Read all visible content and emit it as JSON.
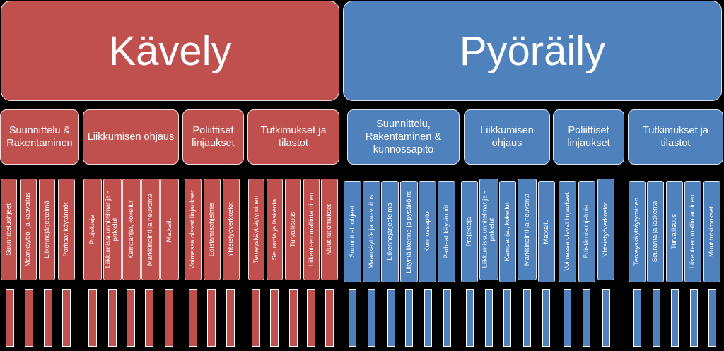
{
  "kavely": {
    "title": "Kävely",
    "categories": [
      {
        "label": "Suunnittelu & Rakentaminen",
        "items": [
          "Suunnitteluohjeet",
          "Maankäyttö- ja kaavoitus",
          "Liikennejärjestelmä",
          "Parhaat käytännöt"
        ]
      },
      {
        "label": "Liikkumisen ohjaus",
        "items": [
          "Projekteja",
          "Liikkumissuunnitelmat ja -palvelut",
          "Kampanjat, kokeilut",
          "Markkinointi ja neuvonta",
          "Matkailu"
        ]
      },
      {
        "label": "Poliittiset linjaukset",
        "items": [
          "Voimassa olevat linjaukset",
          "Edistämisohjelmia",
          "Yhteistyöverkostot"
        ]
      },
      {
        "label": "Tutkimukset ja tilastot",
        "items": [
          "Terveyskäyttäytyminen",
          "Seuranta ja laskenta",
          "Turvallisuus",
          "Liikenteen mallintaminen",
          "Muut tutkimukset"
        ]
      }
    ]
  },
  "pyoraily": {
    "title": "Pyöräily",
    "categories": [
      {
        "label": "Suunnittelu, Rakentaminen & kunnossapito",
        "items": [
          "Suunnitteluohjeet",
          "Maankäyttö- ja kaavoitus",
          "Liikennejärjestelmä",
          "Liityntäliikenne ja pysäköinti",
          "Kunnossapito",
          "Parhaat käytännöt"
        ]
      },
      {
        "label": "Liikkumisen ohjaus",
        "items": [
          "Projekteja",
          "Liikkumissuunnitelmat ja -palvelut",
          "Kampanjat, kokeilut",
          "Markkinointi ja neuvonta",
          "Matkailu"
        ]
      },
      {
        "label": "Poliittiset linjaukset",
        "items": [
          "Voimassa olevat linjaukset",
          "Edistämisohjelmia",
          "Yhteistyöverkostot"
        ]
      },
      {
        "label": "Tutkimukset ja tilastot",
        "items": [
          "Terveyskäyttäytyminen",
          "Seuranta ja laskenta",
          "Turvallisuus",
          "Liikenteen mallintaminen",
          "Muut tutkimukset"
        ]
      }
    ]
  },
  "colors": {
    "kavely": "#c0504d",
    "pyoraily": "#4f81bd",
    "background": "#000000"
  }
}
